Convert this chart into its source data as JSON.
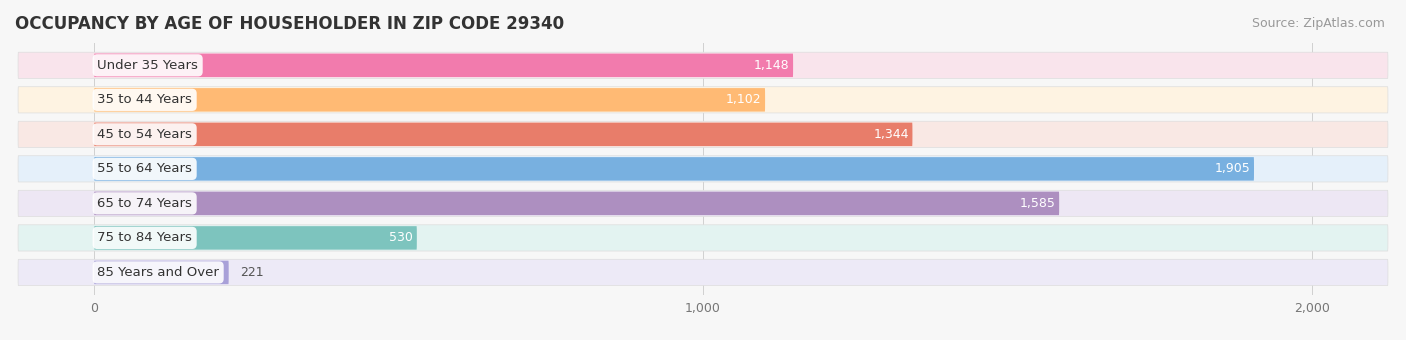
{
  "title": "OCCUPANCY BY AGE OF HOUSEHOLDER IN ZIP CODE 29340",
  "source": "Source: ZipAtlas.com",
  "categories": [
    "Under 35 Years",
    "35 to 44 Years",
    "45 to 54 Years",
    "55 to 64 Years",
    "65 to 74 Years",
    "75 to 84 Years",
    "85 Years and Over"
  ],
  "values": [
    1148,
    1102,
    1344,
    1905,
    1585,
    530,
    221
  ],
  "bar_colors": [
    "#F27BAD",
    "#FFBA74",
    "#E87D6A",
    "#78B0E0",
    "#AD8FC0",
    "#7DC4BE",
    "#A8A0D8"
  ],
  "bar_bg_colors": [
    "#F9E4EC",
    "#FEF3E2",
    "#F9E8E4",
    "#E5F0FA",
    "#EDE7F4",
    "#E3F3F1",
    "#EDEAF7"
  ],
  "row_bg_color": "#f0f0f0",
  "xlim_min": -130,
  "xlim_max": 2130,
  "data_min": 0,
  "data_max": 2000,
  "xticks": [
    0,
    1000,
    2000
  ],
  "xticklabels": [
    "0",
    "1,000",
    "2,000"
  ],
  "title_fontsize": 12,
  "source_fontsize": 9,
  "label_fontsize": 9.5,
  "value_fontsize": 9,
  "background_color": "#f7f7f7"
}
